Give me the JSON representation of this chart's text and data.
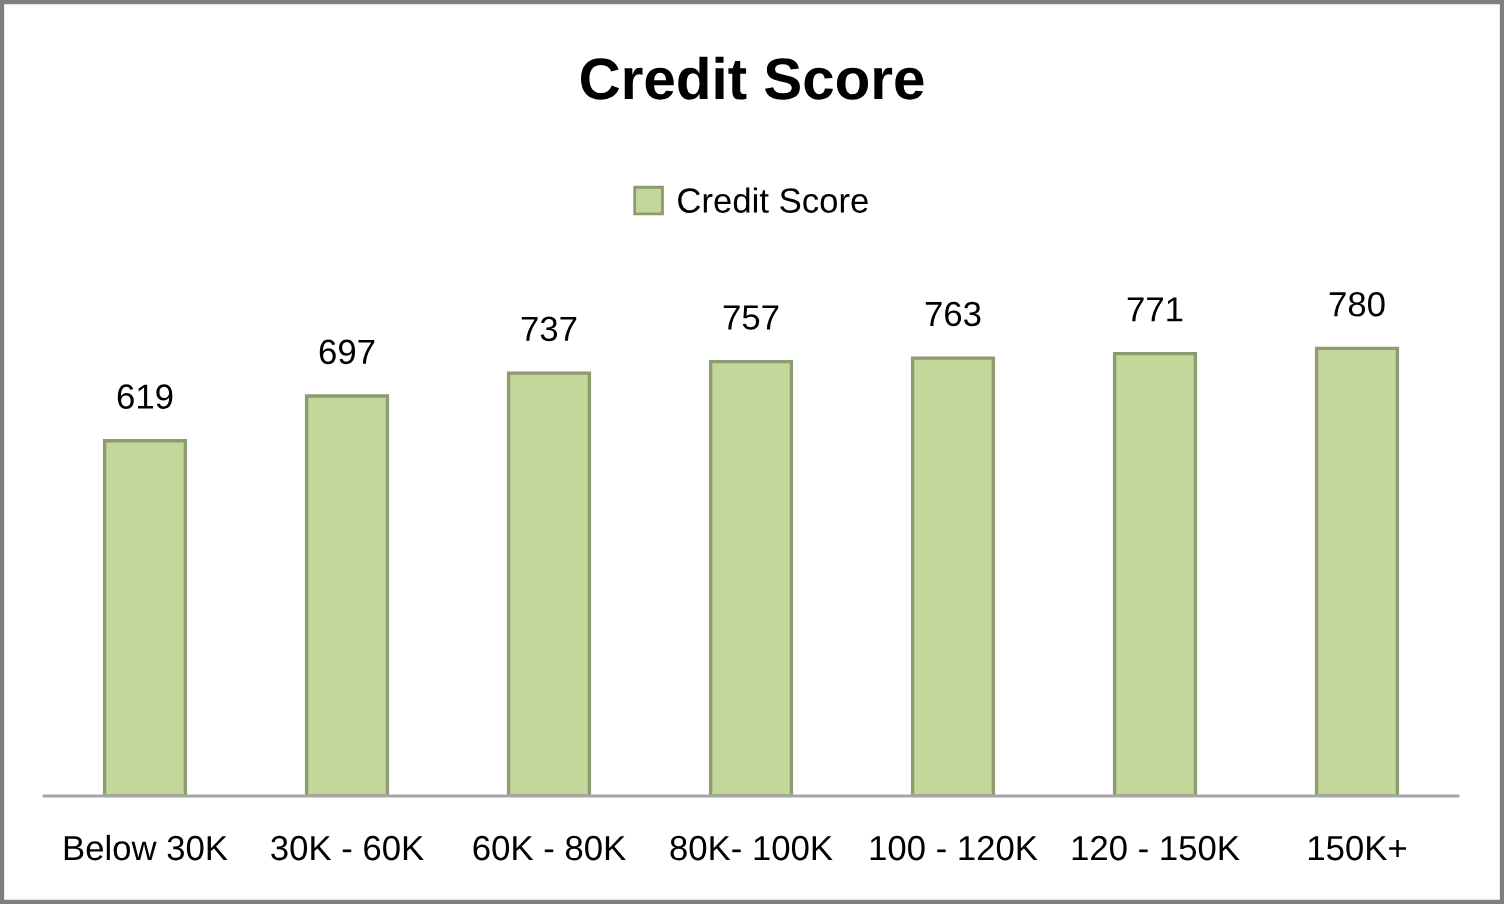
{
  "chart_data": {
    "type": "bar",
    "title": "Credit Score",
    "categories": [
      "Below 30K",
      "30K - 60K",
      "60K - 80K",
      "80K- 100K",
      "100 - 120K",
      "120 - 150K",
      "150K+"
    ],
    "series": [
      {
        "name": "Credit Score",
        "color": "#c4d79b",
        "values": [
          619,
          697,
          737,
          757,
          763,
          771,
          780
        ]
      }
    ],
    "tick_labels": "x",
    "data_labels": true,
    "legend": "top",
    "grid": false
  }
}
